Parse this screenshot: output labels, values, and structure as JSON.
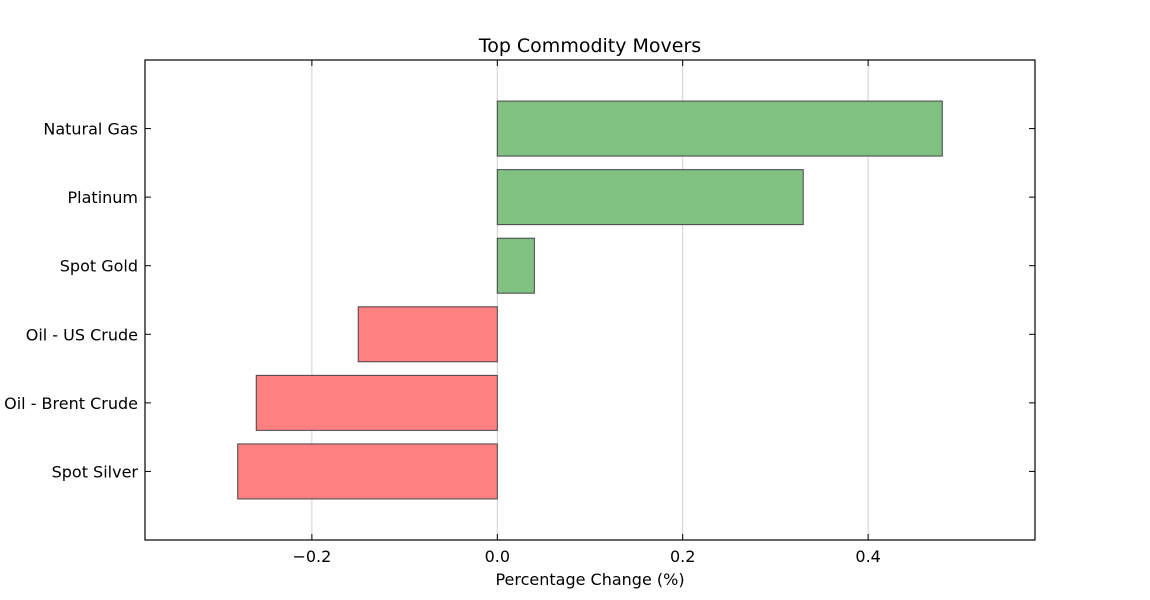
{
  "chart_data": {
    "type": "bar",
    "orientation": "horizontal",
    "title": "Top Commodity Movers",
    "xlabel": "Percentage Change (%)",
    "ylabel": "",
    "categories": [
      "Natural Gas",
      "Platinum",
      "Spot Gold",
      "Oil - US Crude",
      "Oil - Brent Crude",
      "Spot Silver"
    ],
    "values": [
      0.48,
      0.33,
      0.04,
      -0.15,
      -0.26,
      -0.28
    ],
    "xlim": [
      -0.38,
      0.58
    ],
    "xticks": [
      -0.2,
      0.0,
      0.2,
      0.4
    ],
    "xtick_labels": [
      "−0.2",
      "0.0",
      "0.2",
      "0.4"
    ],
    "grid": "vertical",
    "positive_color": "#80c080",
    "negative_color": "#ff8080"
  }
}
